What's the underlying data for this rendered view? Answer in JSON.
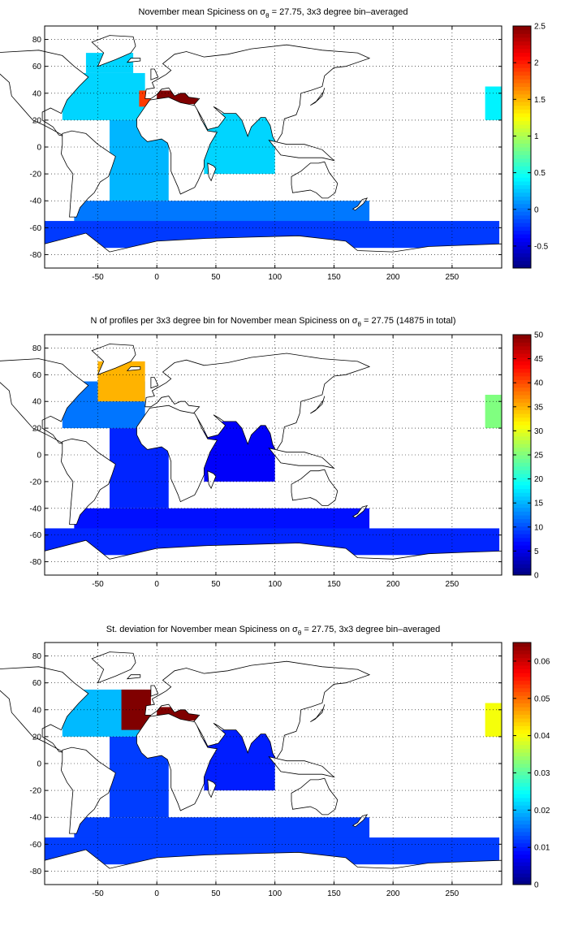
{
  "colormap": "jet",
  "chart_data": [
    {
      "type": "heatmap",
      "title_prefix": "November mean Spiciness on ",
      "title_symbol": "σ",
      "title_subscript": "θ",
      "title_suffix": " = 27.75, 3x3 degree bin–averaged",
      "xlim": [
        -95,
        292
      ],
      "ylim": [
        -90,
        90
      ],
      "xticks": [
        -50,
        0,
        50,
        100,
        150,
        200,
        250
      ],
      "yticks": [
        80,
        60,
        40,
        20,
        0,
        -20,
        -40,
        -60,
        -80
      ],
      "grid": true,
      "colorbar": {
        "min": -0.8,
        "max": 2.5,
        "ticks": [
          2.5,
          2,
          1.5,
          1,
          0.5,
          0,
          -0.5
        ],
        "tick_labels": [
          "2.5",
          "2",
          "1.5",
          "1",
          "0.5",
          "0",
          "-0.5"
        ]
      },
      "regions": [
        {
          "lon": [
            -80,
            -10
          ],
          "lat": [
            20,
            55
          ],
          "value": 0.3
        },
        {
          "lon": [
            -60,
            -20
          ],
          "lat": [
            55,
            70
          ],
          "value": 0.3
        },
        {
          "lon": [
            -15,
            -5
          ],
          "lat": [
            30,
            42
          ],
          "value": 1.9
        },
        {
          "lon": [
            0,
            35
          ],
          "lat": [
            32,
            42
          ],
          "value": 2.5
        },
        {
          "lon": [
            -40,
            10
          ],
          "lat": [
            -40,
            20
          ],
          "value": 0.2
        },
        {
          "lon": [
            40,
            100
          ],
          "lat": [
            -20,
            25
          ],
          "value": 0.3
        },
        {
          "lon": [
            -70,
            180
          ],
          "lat": [
            -60,
            -40
          ],
          "value": 0.0
        },
        {
          "lon": [
            -95,
            290
          ],
          "lat": [
            -75,
            -55
          ],
          "value": -0.2
        },
        {
          "lon": [
            278,
            292
          ],
          "lat": [
            20,
            45
          ],
          "value": 0.4
        }
      ]
    },
    {
      "type": "heatmap",
      "title_prefix": "N of profiles per 3x3 degree bin for November mean Spiciness on ",
      "title_symbol": "σ",
      "title_subscript": "θ",
      "title_suffix": " = 27.75 (14875 in total)",
      "xlim": [
        -95,
        292
      ],
      "ylim": [
        -90,
        90
      ],
      "xticks": [
        -50,
        0,
        50,
        100,
        150,
        200,
        250
      ],
      "yticks": [
        80,
        60,
        40,
        20,
        0,
        -20,
        -40,
        -60,
        -80
      ],
      "grid": true,
      "colorbar": {
        "min": 0,
        "max": 50,
        "ticks": [
          50,
          45,
          40,
          35,
          30,
          25,
          20,
          15,
          10,
          5,
          0
        ],
        "tick_labels": [
          "50",
          "45",
          "40",
          "35",
          "30",
          "25",
          "20",
          "15",
          "10",
          "5",
          "0"
        ]
      },
      "regions": [
        {
          "lon": [
            -80,
            -10
          ],
          "lat": [
            20,
            55
          ],
          "value": 12
        },
        {
          "lon": [
            -50,
            -10
          ],
          "lat": [
            40,
            70
          ],
          "value": 35
        },
        {
          "lon": [
            -40,
            10
          ],
          "lat": [
            -40,
            20
          ],
          "value": 8
        },
        {
          "lon": [
            40,
            100
          ],
          "lat": [
            -20,
            25
          ],
          "value": 6
        },
        {
          "lon": [
            -70,
            180
          ],
          "lat": [
            -60,
            -40
          ],
          "value": 7
        },
        {
          "lon": [
            -95,
            290
          ],
          "lat": [
            -75,
            -55
          ],
          "value": 8
        },
        {
          "lon": [
            278,
            292
          ],
          "lat": [
            20,
            45
          ],
          "value": 25
        }
      ]
    },
    {
      "type": "heatmap",
      "title_prefix": "St. deviation for November mean Spiciness on ",
      "title_symbol": "σ",
      "title_subscript": "θ",
      "title_suffix": " = 27.75, 3x3 degree bin–averaged",
      "xlim": [
        -95,
        292
      ],
      "ylim": [
        -90,
        90
      ],
      "xticks": [
        -50,
        0,
        50,
        100,
        150,
        200,
        250
      ],
      "yticks": [
        80,
        60,
        40,
        20,
        0,
        -20,
        -40,
        -60,
        -80
      ],
      "grid": true,
      "colorbar": {
        "min": 0,
        "max": 0.065,
        "ticks": [
          0.06,
          0.05,
          0.04,
          0.03,
          0.02,
          0.01,
          0
        ],
        "tick_labels": [
          "0.06",
          "0.05",
          "0.04",
          "0.03",
          "0.02",
          "0.01",
          "0"
        ]
      },
      "regions": [
        {
          "lon": [
            -80,
            -10
          ],
          "lat": [
            20,
            55
          ],
          "value": 0.02
        },
        {
          "lon": [
            -30,
            -5
          ],
          "lat": [
            25,
            55
          ],
          "value": 0.065
        },
        {
          "lon": [
            0,
            35
          ],
          "lat": [
            32,
            42
          ],
          "value": 0.065
        },
        {
          "lon": [
            -40,
            10
          ],
          "lat": [
            -40,
            20
          ],
          "value": 0.012
        },
        {
          "lon": [
            40,
            100
          ],
          "lat": [
            -20,
            25
          ],
          "value": 0.01
        },
        {
          "lon": [
            -70,
            180
          ],
          "lat": [
            -60,
            -40
          ],
          "value": 0.012
        },
        {
          "lon": [
            -95,
            290
          ],
          "lat": [
            -75,
            -55
          ],
          "value": 0.012
        },
        {
          "lon": [
            278,
            292
          ],
          "lat": [
            20,
            45
          ],
          "value": 0.04
        }
      ]
    }
  ]
}
